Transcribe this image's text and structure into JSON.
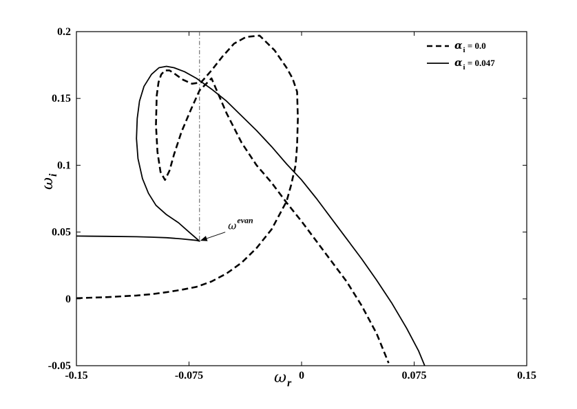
{
  "chart_data": {
    "type": "line",
    "xlim": [
      -0.15,
      0.15
    ],
    "ylim": [
      -0.05,
      0.2
    ],
    "x_ticks": [
      "-0.15",
      "-0.075",
      "0",
      "0.075",
      "0.15"
    ],
    "x_tick_values": [
      -0.15,
      -0.075,
      0,
      0.075,
      0.15
    ],
    "y_ticks": [
      "-0.05",
      "0",
      "0.05",
      "0.1",
      "0.15",
      "0.2"
    ],
    "y_tick_values": [
      -0.05,
      0,
      0.05,
      0.1,
      0.15,
      0.2
    ],
    "xlabel": {
      "symbol": "ω",
      "subscript": "r"
    },
    "ylabel": {
      "symbol": "ω",
      "subscript": "i"
    },
    "grid": false,
    "legend_position": "top-right",
    "series": [
      {
        "name": "α_i = 0.0",
        "legend_symbol": "α",
        "legend_subscript": "i",
        "legend_value": " = 0.0",
        "style": "dashed",
        "color": "#000000",
        "x": [
          -0.15,
          -0.13,
          -0.11,
          -0.1,
          -0.09,
          -0.08,
          -0.07,
          -0.06,
          -0.05,
          -0.04,
          -0.03,
          -0.02,
          -0.01,
          -0.007,
          -0.004,
          -0.003,
          -0.0025,
          -0.003,
          -0.006,
          -0.01,
          -0.018,
          -0.028,
          -0.037,
          -0.045,
          -0.053,
          -0.06,
          -0.067,
          -0.073,
          -0.079,
          -0.084,
          -0.088,
          -0.091,
          -0.0935,
          -0.0953,
          -0.0965,
          -0.097,
          -0.096,
          -0.094,
          -0.091,
          -0.088,
          -0.085,
          -0.08,
          -0.074,
          -0.068,
          -0.06,
          -0.05,
          -0.04,
          -0.03,
          -0.02,
          -0.01,
          0.0,
          0.01,
          0.02,
          0.03,
          0.04,
          0.05,
          0.058
        ],
        "y": [
          0.0005,
          0.0013,
          0.0025,
          0.0035,
          0.005,
          0.0068,
          0.009,
          0.013,
          0.019,
          0.027,
          0.038,
          0.052,
          0.073,
          0.085,
          0.1,
          0.115,
          0.135,
          0.155,
          0.165,
          0.173,
          0.186,
          0.197,
          0.196,
          0.191,
          0.181,
          0.171,
          0.162,
          0.161,
          0.164,
          0.168,
          0.171,
          0.171,
          0.168,
          0.162,
          0.152,
          0.13,
          0.11,
          0.095,
          0.089,
          0.096,
          0.108,
          0.125,
          0.141,
          0.156,
          0.165,
          0.139,
          0.117,
          0.1,
          0.087,
          0.072,
          0.058,
          0.043,
          0.028,
          0.013,
          -0.005,
          -0.026,
          -0.048
        ]
      },
      {
        "name": "α_i = 0.047",
        "legend_symbol": "α",
        "legend_subscript": "i",
        "legend_value": " = 0.047",
        "style": "solid",
        "color": "#000000",
        "x": [
          -0.15,
          -0.13,
          -0.11,
          -0.1,
          -0.09,
          -0.08,
          -0.07,
          -0.068,
          -0.075,
          -0.082,
          -0.09,
          -0.097,
          -0.102,
          -0.106,
          -0.109,
          -0.11,
          -0.1095,
          -0.108,
          -0.105,
          -0.1,
          -0.095,
          -0.09,
          -0.085,
          -0.078,
          -0.07,
          -0.06,
          -0.05,
          -0.04,
          -0.03,
          -0.02,
          -0.01,
          0.0,
          0.01,
          0.02,
          0.03,
          0.04,
          0.05,
          0.06,
          0.07,
          0.078,
          0.082
        ],
        "y": [
          0.047,
          0.0468,
          0.0465,
          0.0462,
          0.0458,
          0.0449,
          0.0438,
          0.0432,
          0.05,
          0.057,
          0.063,
          0.07,
          0.079,
          0.09,
          0.105,
          0.12,
          0.135,
          0.148,
          0.159,
          0.168,
          0.173,
          0.174,
          0.173,
          0.17,
          0.165,
          0.157,
          0.148,
          0.137,
          0.126,
          0.114,
          0.101,
          0.089,
          0.075,
          0.06,
          0.045,
          0.03,
          0.014,
          -0.003,
          -0.022,
          -0.039,
          -0.05
        ]
      }
    ],
    "annotations": [
      {
        "type": "vertical-line",
        "style": "dash-dot",
        "x": -0.068
      },
      {
        "type": "arrow-label",
        "label_symbol": "ω",
        "label_superscript": "evan",
        "target_x": -0.068,
        "target_y": 0.0432,
        "text_x": -0.049,
        "text_y": 0.052
      }
    ]
  }
}
